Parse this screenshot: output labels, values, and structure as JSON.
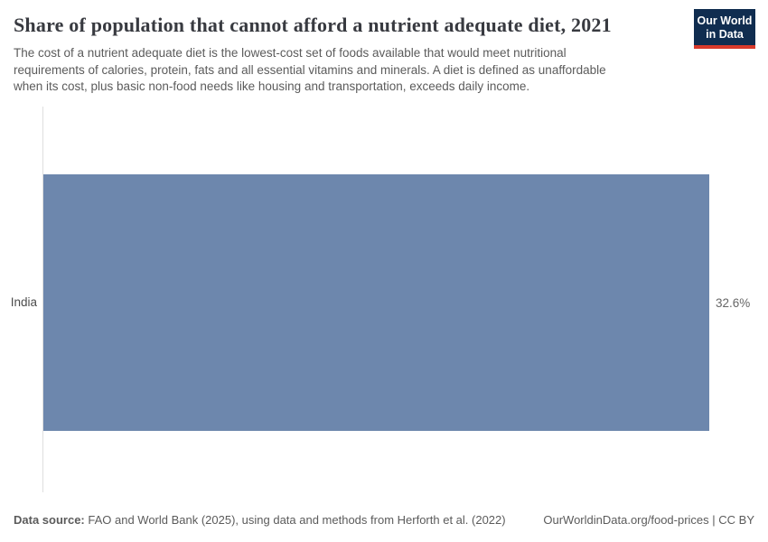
{
  "header": {
    "title": "Share of population that cannot afford a nutrient adequate diet, 2021",
    "subtitle": "The cost of a nutrient adequate diet is the lowest-cost set of foods available that would meet nutritional\nrequirements of calories, protein, fats and all essential vitamins and minerals. A diet is defined as unaffordable\nwhen its cost, plus basic non-food needs like housing and transportation, exceeds daily income.",
    "logo": {
      "line1": "Our World",
      "line2": "in Data",
      "bg_color": "#102d50",
      "accent_color": "#d93a2b"
    }
  },
  "chart_data": {
    "type": "bar",
    "orientation": "horizontal",
    "title": "Share of population that cannot afford a nutrient adequate diet, 2021",
    "categories": [
      "India"
    ],
    "values": [
      32.6
    ],
    "value_labels": [
      "32.6%"
    ],
    "unit": "%",
    "xlabel": "",
    "ylabel": "",
    "xlim": [
      0,
      35
    ],
    "grid": false,
    "legend": "none",
    "bar_color": "#6d87ad",
    "axis_line_color": "#dedede"
  },
  "footer": {
    "data_source_label": "Data source:",
    "data_source_text": " FAO and World Bank (2025), using data and methods from Herforth et al. (2022)",
    "attribution": "OurWorldinData.org/food-prices | CC BY"
  }
}
